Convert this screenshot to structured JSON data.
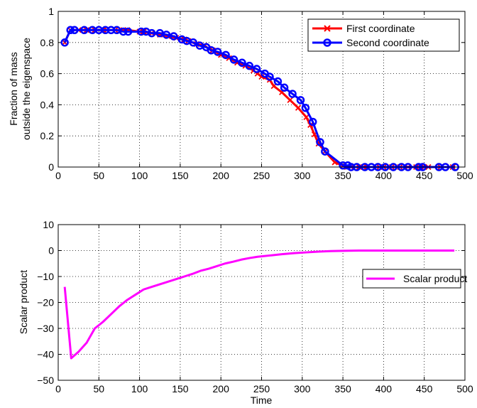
{
  "chart_data": [
    {
      "type": "line",
      "title": "",
      "xlabel": "",
      "ylabel_lines": [
        "Fraction of mass",
        "outside the eigenspace"
      ],
      "xlim": [
        0,
        500
      ],
      "ylim": [
        0,
        1
      ],
      "xticks": [
        0,
        50,
        100,
        150,
        200,
        250,
        300,
        350,
        400,
        450,
        500
      ],
      "yticks": [
        0,
        0.2,
        0.4,
        0.6,
        0.8,
        1
      ],
      "ytick_labels": [
        "0",
        "0.2",
        "0.4",
        "0.6",
        "0.8",
        "1"
      ],
      "grid": "dotted, both axes",
      "legend_position": "top-right",
      "series": [
        {
          "name": "First coordinate",
          "color": "#ff0000",
          "marker": "x",
          "x": [
            8,
            15,
            25,
            35,
            45,
            55,
            60,
            70,
            80,
            85,
            100,
            105,
            115,
            125,
            135,
            145,
            155,
            160,
            170,
            180,
            185,
            190,
            200,
            210,
            220,
            230,
            240,
            245,
            250,
            260,
            265,
            275,
            285,
            295,
            305,
            310,
            315,
            320,
            328,
            340,
            350,
            355,
            360,
            370,
            375,
            380,
            395,
            400,
            410,
            420,
            430,
            440,
            450,
            455,
            470,
            485
          ],
          "y": [
            0.8,
            0.88,
            0.88,
            0.88,
            0.88,
            0.88,
            0.88,
            0.88,
            0.88,
            0.88,
            0.87,
            0.87,
            0.86,
            0.85,
            0.84,
            0.83,
            0.82,
            0.81,
            0.79,
            0.78,
            0.76,
            0.75,
            0.72,
            0.7,
            0.67,
            0.65,
            0.62,
            0.6,
            0.58,
            0.56,
            0.52,
            0.48,
            0.43,
            0.38,
            0.32,
            0.27,
            0.21,
            0.15,
            0.1,
            0.03,
            0.01,
            0.0,
            0.0,
            0.0,
            0.0,
            0.0,
            0.0,
            0.0,
            0.0,
            0.0,
            0.0,
            0.0,
            0.0,
            0.0,
            0.0,
            0.0
          ]
        },
        {
          "name": "Second coordinate",
          "color": "#0000ff",
          "marker": "o",
          "x": [
            8,
            15,
            20,
            32,
            42,
            50,
            58,
            65,
            72,
            80,
            86,
            102,
            108,
            115,
            125,
            133,
            142,
            152,
            158,
            166,
            174,
            182,
            188,
            196,
            206,
            216,
            226,
            235,
            244,
            254,
            260,
            270,
            278,
            288,
            298,
            304,
            313,
            322,
            328,
            350,
            356,
            360,
            367,
            377,
            385,
            393,
            402,
            412,
            422,
            430,
            443,
            448,
            468,
            476,
            488
          ],
          "y": [
            0.8,
            0.88,
            0.88,
            0.88,
            0.88,
            0.88,
            0.88,
            0.88,
            0.88,
            0.87,
            0.87,
            0.87,
            0.87,
            0.86,
            0.86,
            0.85,
            0.84,
            0.82,
            0.81,
            0.8,
            0.78,
            0.77,
            0.75,
            0.74,
            0.72,
            0.69,
            0.67,
            0.65,
            0.63,
            0.6,
            0.58,
            0.55,
            0.51,
            0.47,
            0.43,
            0.38,
            0.29,
            0.16,
            0.1,
            0.01,
            0.01,
            0.0,
            0.0,
            0.0,
            0.0,
            0.0,
            0.0,
            0.0,
            0.0,
            0.0,
            0.0,
            0.0,
            0.0,
            0.0,
            0.0
          ]
        }
      ]
    },
    {
      "type": "line",
      "title": "",
      "xlabel": "Time",
      "ylabel": "Scalar product",
      "xlim": [
        0,
        500
      ],
      "ylim": [
        -50,
        10
      ],
      "xticks": [
        0,
        50,
        100,
        150,
        200,
        250,
        300,
        350,
        400,
        450,
        500
      ],
      "yticks": [
        10,
        0,
        -10,
        -20,
        -30,
        -40,
        -50
      ],
      "ytick_labels": [
        "10",
        "0",
        "−10",
        "−20",
        "−30",
        "−40",
        "−50"
      ],
      "grid": "dotted, both axes",
      "legend_position": "right",
      "series": [
        {
          "name": "Scalar product",
          "color": "#ff00ff",
          "marker": "none",
          "x": [
            8,
            16,
            25,
            35,
            45,
            55,
            65,
            75,
            85,
            95,
            105,
            115,
            125,
            135,
            145,
            155,
            165,
            175,
            185,
            195,
            205,
            215,
            225,
            235,
            245,
            260,
            275,
            290,
            305,
            320,
            335,
            350,
            370,
            400,
            430,
            460,
            487
          ],
          "y": [
            -14,
            -41.5,
            -39,
            -35.5,
            -30,
            -27.5,
            -24.5,
            -21.5,
            -19,
            -17,
            -15,
            -14,
            -13,
            -12,
            -11,
            -10,
            -9,
            -7.8,
            -7,
            -6,
            -5,
            -4.3,
            -3.5,
            -2.9,
            -2.4,
            -1.9,
            -1.4,
            -1.0,
            -0.7,
            -0.4,
            -0.2,
            -0.1,
            0,
            0,
            0,
            0,
            0
          ]
        }
      ]
    }
  ]
}
